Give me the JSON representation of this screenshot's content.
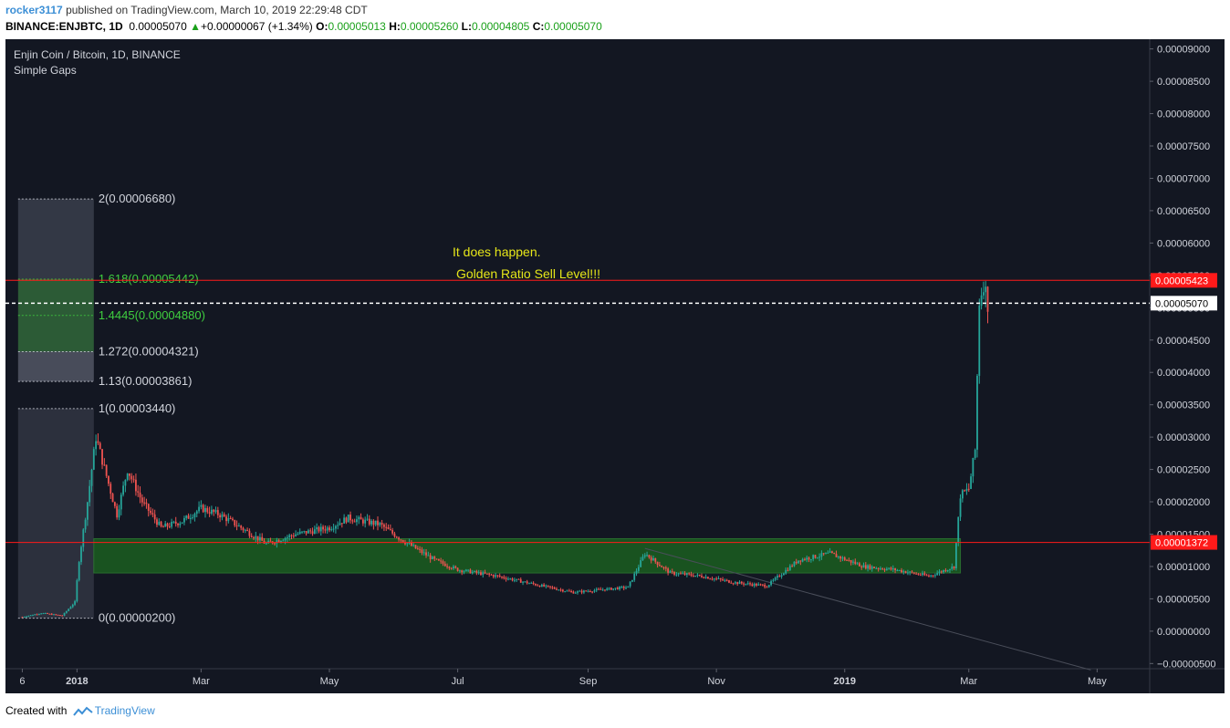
{
  "header": {
    "username": "rocker3117",
    "published_text": "published on TradingView.com, March 10, 2019 22:29:48 CDT",
    "symbol": "BINANCE:ENJBTC, 1D",
    "last": "0.00005070",
    "change": "+0.00000067 (+1.34%)",
    "o_label": "O:",
    "o_value": "0.00005013",
    "h_label": "H:",
    "h_value": "0.00005260",
    "l_label": "L:",
    "l_value": "0.00004805",
    "c_label": "C:",
    "c_value": "0.00005070"
  },
  "chart_data": {
    "type": "candlestick",
    "title": "Enjin Coin / Bitcoin, 1D, BINANCE",
    "indicator": "Simple Gaps",
    "y_axis": {
      "ticks": [
        "0.00009000",
        "0.00008500",
        "0.00008000",
        "0.00007500",
        "0.00007000",
        "0.00006500",
        "0.00006000",
        "0.00005500",
        "0.00005000",
        "0.00004500",
        "0.00004000",
        "0.00003500",
        "0.00003000",
        "0.00002500",
        "0.00002000",
        "0.00001500",
        "0.00001000",
        "0.00000500",
        "0.00000000",
        "−0.00000500"
      ],
      "tick_values": [
        9e-05,
        8.5e-05,
        8e-05,
        7.5e-05,
        7e-05,
        6.5e-05,
        6e-05,
        5.5e-05,
        5e-05,
        4.5e-05,
        4e-05,
        3.5e-05,
        3e-05,
        2.5e-05,
        2e-05,
        1.5e-05,
        1e-05,
        5e-06,
        0,
        -5e-06
      ],
      "ylim": [
        -5.8e-06,
        9.15e-05
      ]
    },
    "x_axis": {
      "labels": [
        "6",
        "2018",
        "Mar",
        "May",
        "Jul",
        "Sep",
        "Nov",
        "2019",
        "Mar",
        "May"
      ],
      "bold_labels": [
        "2018",
        "2019"
      ],
      "label_dates": [
        "2017-12-06",
        "2018-01-01",
        "2018-03-01",
        "2018-05-01",
        "2018-07-01",
        "2018-09-01",
        "2018-11-01",
        "2019-01-01",
        "2019-03-01",
        "2019-05-01"
      ],
      "xlim": [
        "2017-11-28",
        "2019-05-26"
      ]
    },
    "price_series": [
      [
        "2017-12-06",
        2.2e-06
      ],
      [
        "2017-12-15",
        2.8e-06
      ],
      [
        "2017-12-25",
        2.4e-06
      ],
      [
        "2017-12-31",
        4.5e-06
      ],
      [
        "2018-01-02",
        1.1e-05
      ],
      [
        "2018-01-06",
        2e-05
      ],
      [
        "2018-01-10",
        3e-05
      ],
      [
        "2018-01-15",
        2.4e-05
      ],
      [
        "2018-01-20",
        1.8e-05
      ],
      [
        "2018-01-25",
        2.5e-05
      ],
      [
        "2018-02-01",
        2e-05
      ],
      [
        "2018-02-10",
        1.6e-05
      ],
      [
        "2018-02-20",
        1.7e-05
      ],
      [
        "2018-03-01",
        1.9e-05
      ],
      [
        "2018-03-10",
        1.8e-05
      ],
      [
        "2018-03-20",
        1.6e-05
      ],
      [
        "2018-04-01",
        1.35e-05
      ],
      [
        "2018-04-15",
        1.5e-05
      ],
      [
        "2018-05-01",
        1.6e-05
      ],
      [
        "2018-05-10",
        1.75e-05
      ],
      [
        "2018-05-25",
        1.65e-05
      ],
      [
        "2018-06-05",
        1.4e-05
      ],
      [
        "2018-06-20",
        1.1e-05
      ],
      [
        "2018-07-01",
        9.5e-06
      ],
      [
        "2018-07-20",
        8.5e-06
      ],
      [
        "2018-08-10",
        7e-06
      ],
      [
        "2018-08-25",
        6e-06
      ],
      [
        "2018-09-10",
        6.5e-06
      ],
      [
        "2018-09-20",
        6.8e-06
      ],
      [
        "2018-09-28",
        1.2e-05
      ],
      [
        "2018-10-10",
        9e-06
      ],
      [
        "2018-10-25",
        8.5e-06
      ],
      [
        "2018-11-10",
        7.5e-06
      ],
      [
        "2018-11-25",
        7e-06
      ],
      [
        "2018-12-10",
        1.1e-05
      ],
      [
        "2018-12-25",
        1.2e-05
      ],
      [
        "2019-01-10",
        1e-05
      ],
      [
        "2019-01-25",
        9.5e-06
      ],
      [
        "2019-02-10",
        8.5e-06
      ],
      [
        "2019-02-22",
        1e-05
      ],
      [
        "2019-02-25",
        2.1e-05
      ],
      [
        "2019-03-01",
        2.2e-05
      ],
      [
        "2019-03-04",
        2.8e-05
      ],
      [
        "2019-03-06",
        5.1e-05
      ],
      [
        "2019-03-08",
        5.4e-05
      ],
      [
        "2019-03-10",
        5.07e-05
      ]
    ],
    "fib_levels": [
      {
        "label": "2(0.00006680)",
        "value": 6.68e-05,
        "color": "#d1d4dc"
      },
      {
        "label": "1.618(0.00005442)",
        "value": 5.442e-05,
        "color": "#3fcf3f"
      },
      {
        "label": "1.4445(0.00004880)",
        "value": 4.88e-05,
        "color": "#3fcf3f"
      },
      {
        "label": "1.272(0.00004321)",
        "value": 4.321e-05,
        "color": "#d1d4dc"
      },
      {
        "label": "1.13(0.00003861)",
        "value": 3.861e-05,
        "color": "#d1d4dc"
      },
      {
        "label": "1(0.00003440)",
        "value": 3.44e-05,
        "color": "#d1d4dc"
      },
      {
        "label": "0(0.00000200)",
        "value": 2e-06,
        "color": "#d1d4dc"
      }
    ],
    "fib_range": [
      "2017-12-04",
      "2018-01-09"
    ],
    "green_box": {
      "x": [
        "2018-01-09",
        "2019-02-25"
      ],
      "y": [
        9e-06,
        1.43e-05
      ]
    },
    "horizontal_lines": [
      {
        "value": 5.423e-05,
        "label": "0.00005423",
        "color": "#ff1a1a"
      },
      {
        "value": 1.372e-05,
        "label": "0.00001372",
        "color": "#ff1a1a"
      },
      {
        "value": 5.07e-05,
        "label": "0.00005070",
        "color": "#ffffff",
        "dashed": true
      }
    ],
    "annotation": {
      "lines": [
        "It does happen.",
        "Golden Ratio Sell Level!!!"
      ],
      "color": "#e6e619"
    },
    "trendline": {
      "x": [
        "2018-09-28",
        "2019-04-28"
      ],
      "y": [
        1.28e-05,
        -6e-06
      ]
    },
    "colors": {
      "up": "#26a69a",
      "down": "#ef5350",
      "background": "#131722",
      "text": "#d1d4dc"
    }
  },
  "footer": {
    "created_with": "Created with",
    "brand": "TradingView"
  }
}
